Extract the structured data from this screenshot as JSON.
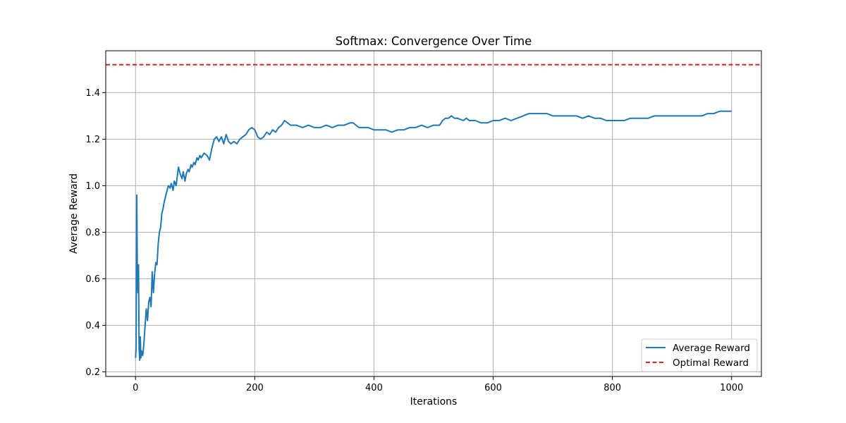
{
  "chart_data": {
    "type": "line",
    "title": "Softmax: Convergence Over Time",
    "xlabel": "Iterations",
    "ylabel": "Average Reward",
    "xlim": [
      -50,
      1050
    ],
    "ylim": [
      0.18,
      1.58
    ],
    "xticks": [
      0,
      200,
      400,
      600,
      800,
      1000
    ],
    "yticks": [
      0.2,
      0.4,
      0.6,
      0.8,
      1.0,
      1.2,
      1.4
    ],
    "xtick_labels": [
      "0",
      "200",
      "400",
      "600",
      "800",
      "1000"
    ],
    "ytick_labels": [
      "0.2",
      "0.4",
      "0.6",
      "0.8",
      "1.0",
      "1.2",
      "1.4"
    ],
    "grid": true,
    "legend_position": "lower-right",
    "series": [
      {
        "name": "Average Reward",
        "color": "#1f77b4",
        "style": "solid",
        "points": [
          [
            0,
            0.26
          ],
          [
            1,
            0.31
          ],
          [
            2,
            0.96
          ],
          [
            3,
            0.62
          ],
          [
            4,
            0.54
          ],
          [
            5,
            0.66
          ],
          [
            6,
            0.3
          ],
          [
            7,
            0.25
          ],
          [
            8,
            0.35
          ],
          [
            9,
            0.26
          ],
          [
            10,
            0.29
          ],
          [
            12,
            0.27
          ],
          [
            14,
            0.32
          ],
          [
            16,
            0.4
          ],
          [
            18,
            0.47
          ],
          [
            20,
            0.42
          ],
          [
            22,
            0.5
          ],
          [
            24,
            0.52
          ],
          [
            26,
            0.48
          ],
          [
            28,
            0.63
          ],
          [
            30,
            0.54
          ],
          [
            32,
            0.62
          ],
          [
            34,
            0.67
          ],
          [
            36,
            0.66
          ],
          [
            38,
            0.75
          ],
          [
            40,
            0.8
          ],
          [
            42,
            0.82
          ],
          [
            44,
            0.88
          ],
          [
            46,
            0.9
          ],
          [
            48,
            0.93
          ],
          [
            50,
            0.95
          ],
          [
            52,
            0.97
          ],
          [
            55,
            1.0
          ],
          [
            58,
            0.99
          ],
          [
            60,
            1.01
          ],
          [
            63,
            0.98
          ],
          [
            65,
            1.02
          ],
          [
            68,
            1.0
          ],
          [
            70,
            1.04
          ],
          [
            72,
            1.08
          ],
          [
            75,
            1.05
          ],
          [
            78,
            1.03
          ],
          [
            80,
            1.06
          ],
          [
            83,
            1.02
          ],
          [
            85,
            1.05
          ],
          [
            88,
            1.07
          ],
          [
            90,
            1.06
          ],
          [
            93,
            1.09
          ],
          [
            95,
            1.08
          ],
          [
            98,
            1.1
          ],
          [
            100,
            1.09
          ],
          [
            103,
            1.12
          ],
          [
            105,
            1.11
          ],
          [
            108,
            1.13
          ],
          [
            110,
            1.12
          ],
          [
            115,
            1.14
          ],
          [
            120,
            1.13
          ],
          [
            124,
            1.11
          ],
          [
            128,
            1.16
          ],
          [
            132,
            1.2
          ],
          [
            136,
            1.21
          ],
          [
            140,
            1.19
          ],
          [
            144,
            1.21
          ],
          [
            148,
            1.18
          ],
          [
            152,
            1.22
          ],
          [
            156,
            1.19
          ],
          [
            160,
            1.18
          ],
          [
            165,
            1.19
          ],
          [
            170,
            1.18
          ],
          [
            175,
            1.2
          ],
          [
            180,
            1.21
          ],
          [
            185,
            1.22
          ],
          [
            190,
            1.24
          ],
          [
            195,
            1.25
          ],
          [
            200,
            1.24
          ],
          [
            205,
            1.21
          ],
          [
            210,
            1.2
          ],
          [
            215,
            1.21
          ],
          [
            220,
            1.23
          ],
          [
            225,
            1.22
          ],
          [
            230,
            1.24
          ],
          [
            235,
            1.23
          ],
          [
            240,
            1.25
          ],
          [
            245,
            1.26
          ],
          [
            250,
            1.28
          ],
          [
            255,
            1.27
          ],
          [
            260,
            1.26
          ],
          [
            270,
            1.26
          ],
          [
            280,
            1.25
          ],
          [
            290,
            1.26
          ],
          [
            300,
            1.25
          ],
          [
            310,
            1.25
          ],
          [
            320,
            1.26
          ],
          [
            330,
            1.25
          ],
          [
            340,
            1.26
          ],
          [
            350,
            1.26
          ],
          [
            360,
            1.27
          ],
          [
            365,
            1.27
          ],
          [
            370,
            1.26
          ],
          [
            375,
            1.25
          ],
          [
            380,
            1.25
          ],
          [
            390,
            1.25
          ],
          [
            400,
            1.24
          ],
          [
            410,
            1.24
          ],
          [
            420,
            1.24
          ],
          [
            430,
            1.23
          ],
          [
            440,
            1.24
          ],
          [
            450,
            1.24
          ],
          [
            460,
            1.25
          ],
          [
            470,
            1.25
          ],
          [
            480,
            1.26
          ],
          [
            490,
            1.25
          ],
          [
            500,
            1.26
          ],
          [
            510,
            1.26
          ],
          [
            515,
            1.28
          ],
          [
            520,
            1.29
          ],
          [
            525,
            1.29
          ],
          [
            530,
            1.3
          ],
          [
            535,
            1.29
          ],
          [
            540,
            1.29
          ],
          [
            550,
            1.28
          ],
          [
            555,
            1.29
          ],
          [
            560,
            1.28
          ],
          [
            570,
            1.28
          ],
          [
            580,
            1.27
          ],
          [
            590,
            1.27
          ],
          [
            600,
            1.28
          ],
          [
            610,
            1.28
          ],
          [
            620,
            1.29
          ],
          [
            630,
            1.28
          ],
          [
            640,
            1.29
          ],
          [
            650,
            1.3
          ],
          [
            660,
            1.31
          ],
          [
            670,
            1.31
          ],
          [
            680,
            1.31
          ],
          [
            690,
            1.31
          ],
          [
            700,
            1.3
          ],
          [
            710,
            1.3
          ],
          [
            720,
            1.3
          ],
          [
            730,
            1.3
          ],
          [
            740,
            1.3
          ],
          [
            750,
            1.29
          ],
          [
            760,
            1.3
          ],
          [
            770,
            1.29
          ],
          [
            780,
            1.29
          ],
          [
            790,
            1.28
          ],
          [
            800,
            1.28
          ],
          [
            810,
            1.28
          ],
          [
            820,
            1.28
          ],
          [
            830,
            1.29
          ],
          [
            840,
            1.29
          ],
          [
            850,
            1.29
          ],
          [
            860,
            1.29
          ],
          [
            870,
            1.3
          ],
          [
            880,
            1.3
          ],
          [
            890,
            1.3
          ],
          [
            900,
            1.3
          ],
          [
            910,
            1.3
          ],
          [
            920,
            1.3
          ],
          [
            930,
            1.3
          ],
          [
            940,
            1.3
          ],
          [
            950,
            1.3
          ],
          [
            960,
            1.31
          ],
          [
            970,
            1.31
          ],
          [
            980,
            1.32
          ],
          [
            990,
            1.32
          ],
          [
            1000,
            1.32
          ]
        ]
      },
      {
        "name": "Optimal Reward",
        "color": "#d62728",
        "style": "dashed",
        "y": 1.52
      }
    ]
  }
}
